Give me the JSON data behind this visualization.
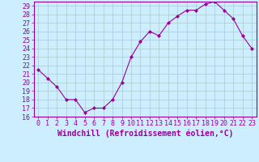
{
  "x": [
    0,
    1,
    2,
    3,
    4,
    5,
    6,
    7,
    8,
    9,
    10,
    11,
    12,
    13,
    14,
    15,
    16,
    17,
    18,
    19,
    20,
    21,
    22,
    23
  ],
  "y": [
    21.5,
    20.5,
    19.5,
    18.0,
    18.0,
    16.5,
    17.0,
    17.0,
    18.0,
    20.0,
    23.0,
    24.8,
    26.0,
    25.5,
    27.0,
    27.8,
    28.5,
    28.5,
    29.2,
    29.5,
    28.5,
    27.5,
    25.5,
    24.0
  ],
  "line_color": "#990099",
  "marker": "D",
  "marker_size": 2,
  "bg_color": "#cceeff",
  "grid_color": "#aacccc",
  "xlabel": "Windchill (Refroidissement éolien,°C)",
  "xlabel_fontsize": 7,
  "tick_fontsize": 6,
  "ylim": [
    16,
    29.5
  ],
  "yticks": [
    16,
    17,
    18,
    19,
    20,
    21,
    22,
    23,
    24,
    25,
    26,
    27,
    28,
    29
  ],
  "xlim": [
    -0.5,
    23.5
  ],
  "xticks": [
    0,
    1,
    2,
    3,
    4,
    5,
    6,
    7,
    8,
    9,
    10,
    11,
    12,
    13,
    14,
    15,
    16,
    17,
    18,
    19,
    20,
    21,
    22,
    23
  ]
}
